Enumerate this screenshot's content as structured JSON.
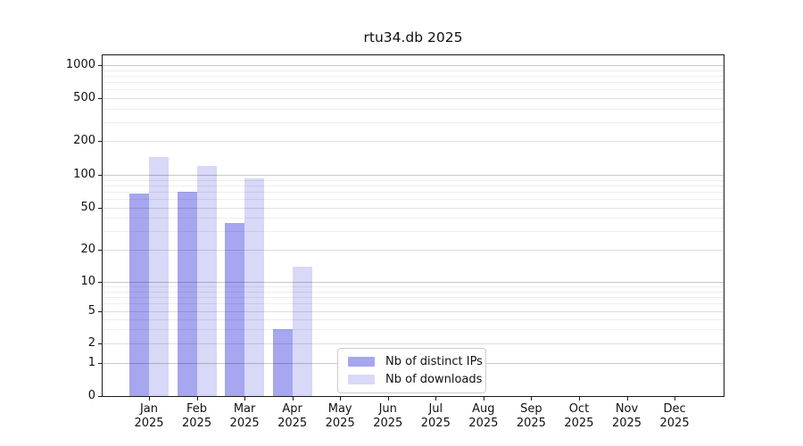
{
  "title": "rtu34.db 2025",
  "chart_data": {
    "type": "bar",
    "title": "rtu34.db 2025",
    "x_categories": [
      {
        "month": "Jan",
        "year": "2025"
      },
      {
        "month": "Feb",
        "year": "2025"
      },
      {
        "month": "Mar",
        "year": "2025"
      },
      {
        "month": "Apr",
        "year": "2025"
      },
      {
        "month": "May",
        "year": "2025"
      },
      {
        "month": "Jun",
        "year": "2025"
      },
      {
        "month": "Jul",
        "year": "2025"
      },
      {
        "month": "Aug",
        "year": "2025"
      },
      {
        "month": "Sep",
        "year": "2025"
      },
      {
        "month": "Oct",
        "year": "2025"
      },
      {
        "month": "Nov",
        "year": "2025"
      },
      {
        "month": "Dec",
        "year": "2025"
      }
    ],
    "y_axis": {
      "scale": "symlog",
      "tick_values": [
        0,
        1,
        2,
        5,
        10,
        20,
        50,
        100,
        200,
        500,
        1000
      ],
      "major_tick_values": [
        1,
        10,
        100,
        1000
      ],
      "mid_tick_values": [
        2,
        5,
        20,
        50,
        200,
        500
      ],
      "minor_tick_values": [
        3,
        4,
        6,
        7,
        8,
        9,
        30,
        40,
        60,
        70,
        80,
        90,
        300,
        400,
        600,
        700,
        800,
        900
      ],
      "ylim": [
        0,
        1200
      ],
      "grid": true
    },
    "series": [
      {
        "name": "Nb of distinct IPs",
        "color": "#a6a6f1",
        "values": [
          68,
          70,
          36,
          3,
          0,
          0,
          0,
          0,
          0,
          0,
          0,
          0
        ]
      },
      {
        "name": "Nb of downloads",
        "color": "#d8d8f7",
        "values": [
          145,
          120,
          93,
          14,
          0,
          0,
          0,
          0,
          0,
          0,
          0,
          0
        ]
      }
    ],
    "legend": {
      "position": "lower-center",
      "labels": [
        "Nb of distinct IPs",
        "Nb of downloads"
      ]
    }
  }
}
